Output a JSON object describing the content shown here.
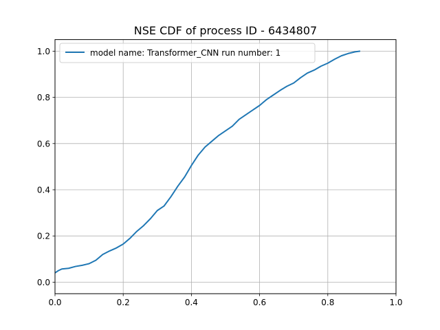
{
  "chart_data": {
    "type": "line",
    "title": "NSE CDF of process ID - 6434807",
    "xlabel": "",
    "ylabel": "",
    "xlim": [
      0.0,
      1.0
    ],
    "ylim": [
      -0.05,
      1.05
    ],
    "grid": true,
    "legend": "upper-left",
    "x_ticks": [
      "0.0",
      "0.2",
      "0.4",
      "0.6",
      "0.8",
      "1.0"
    ],
    "y_ticks": [
      "0.0",
      "0.2",
      "0.4",
      "0.6",
      "0.8",
      "1.0"
    ],
    "series": [
      {
        "name": "model name: Transformer_CNN run number: 1",
        "color": "#1f77b4",
        "x": [
          0.0,
          0.01,
          0.02,
          0.04,
          0.06,
          0.08,
          0.1,
          0.12,
          0.14,
          0.16,
          0.18,
          0.2,
          0.22,
          0.24,
          0.26,
          0.28,
          0.3,
          0.32,
          0.34,
          0.36,
          0.38,
          0.4,
          0.42,
          0.44,
          0.46,
          0.48,
          0.5,
          0.52,
          0.54,
          0.56,
          0.58,
          0.6,
          0.62,
          0.64,
          0.66,
          0.68,
          0.7,
          0.72,
          0.74,
          0.76,
          0.78,
          0.8,
          0.82,
          0.84,
          0.86,
          0.88,
          0.895
        ],
        "y": [
          0.04,
          0.05,
          0.057,
          0.06,
          0.068,
          0.073,
          0.08,
          0.095,
          0.12,
          0.135,
          0.148,
          0.165,
          0.19,
          0.22,
          0.245,
          0.275,
          0.31,
          0.33,
          0.37,
          0.415,
          0.455,
          0.505,
          0.55,
          0.585,
          0.61,
          0.635,
          0.655,
          0.675,
          0.705,
          0.725,
          0.745,
          0.765,
          0.79,
          0.81,
          0.83,
          0.848,
          0.862,
          0.885,
          0.905,
          0.918,
          0.935,
          0.948,
          0.965,
          0.98,
          0.99,
          0.997,
          1.0
        ]
      }
    ]
  }
}
